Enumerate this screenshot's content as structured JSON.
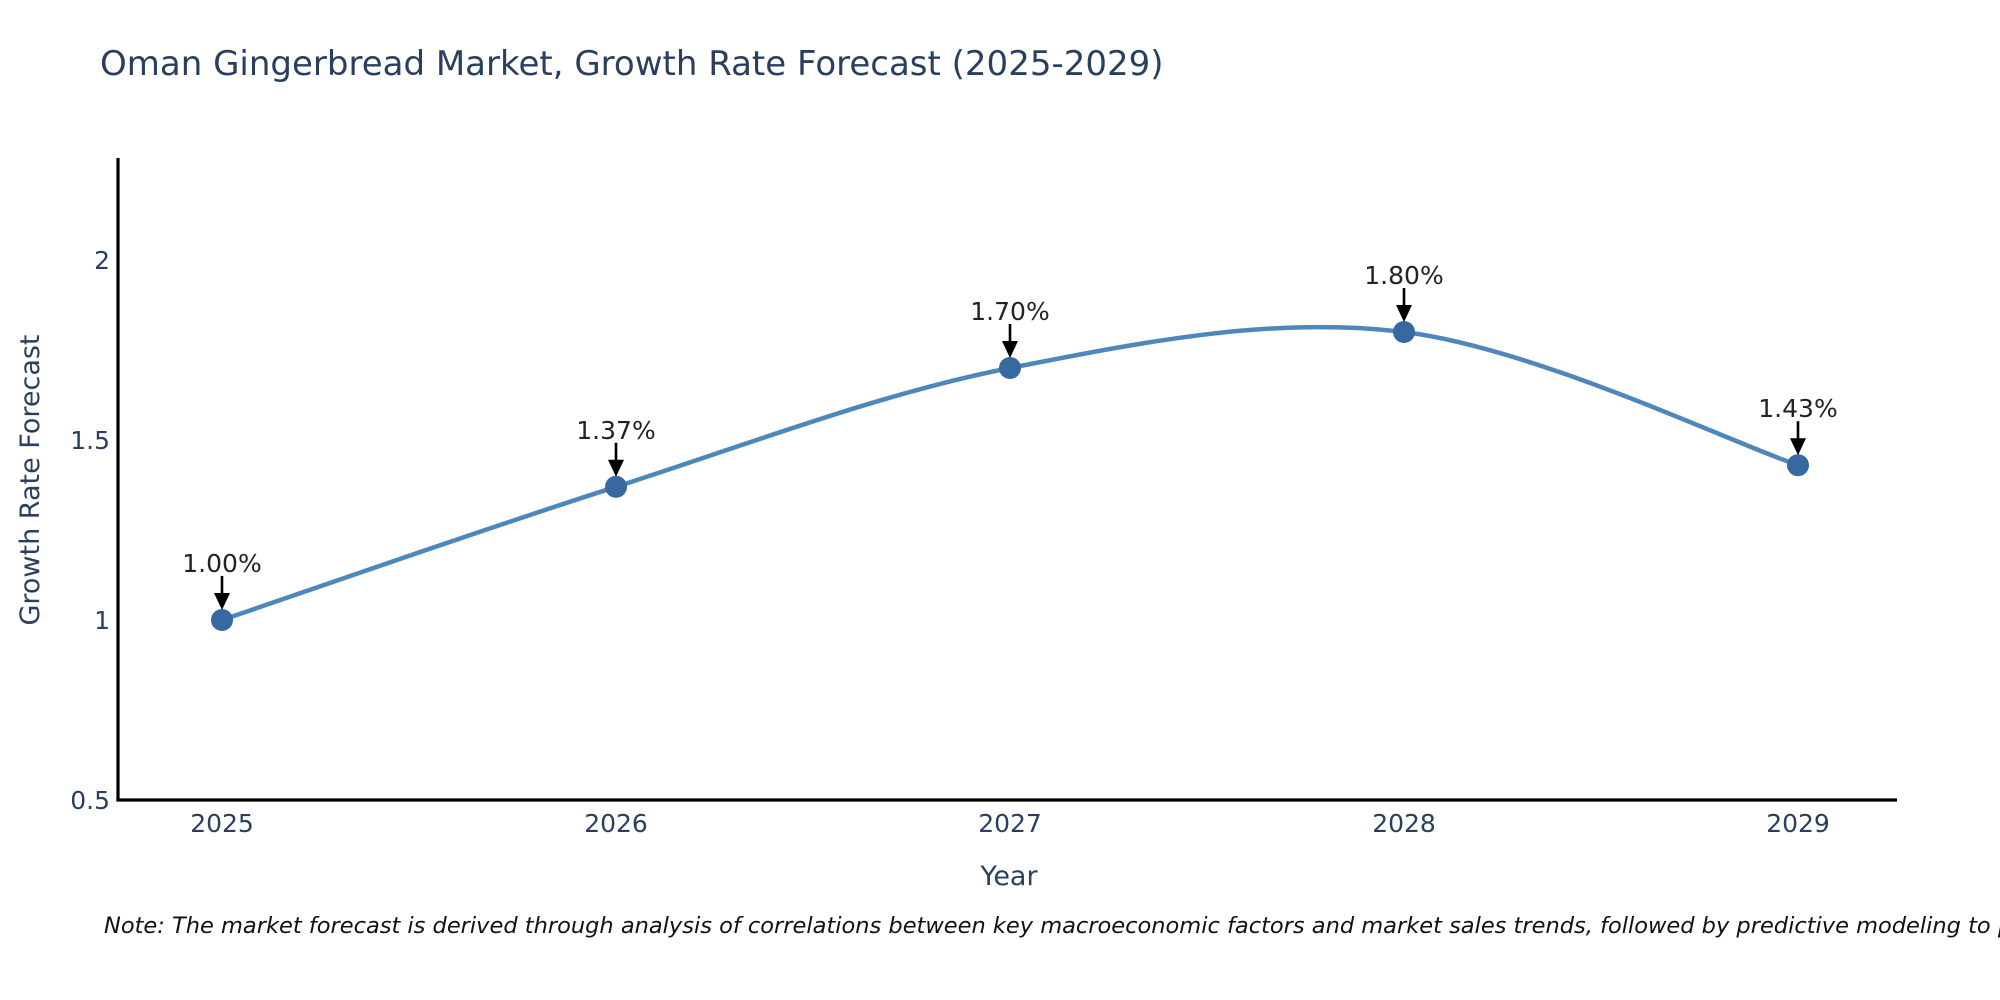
{
  "title": "Oman Gingerbread Market, Growth Rate Forecast (2025-2029)",
  "note": "Note: The market forecast is derived through analysis of correlations between key macroeconomic factors and market sales trends, followed by predictive modeling to project future sales",
  "chart_data": {
    "type": "line",
    "title": "Oman Gingerbread Market, Growth Rate Forecast (2025-2029)",
    "xlabel": "Year",
    "ylabel": "Growth Rate Forecast",
    "categories": [
      "2025",
      "2026",
      "2027",
      "2028",
      "2029"
    ],
    "x": [
      2025,
      2026,
      2027,
      2028,
      2029
    ],
    "values": [
      1.0,
      1.37,
      1.7,
      1.8,
      1.43
    ],
    "point_labels": [
      "1.00%",
      "1.37%",
      "1.70%",
      "1.80%",
      "1.43%"
    ],
    "y_ticks": [
      0.5,
      1,
      1.5,
      2
    ],
    "y_tick_labels": [
      "0.5",
      "1",
      "1.5",
      "2"
    ],
    "xlim": [
      2025,
      2029
    ],
    "ylim": [
      0.5,
      2.28
    ],
    "line_shape": "spline",
    "grid": false,
    "legend_position": "none",
    "colors": {
      "line": "#4d87bb",
      "marker": "#35699f",
      "axis_line": "#000000",
      "axis_text": "#2a3f5f",
      "annotation_text": "#222222",
      "arrow": "#000000",
      "background": "#ffffff"
    }
  }
}
